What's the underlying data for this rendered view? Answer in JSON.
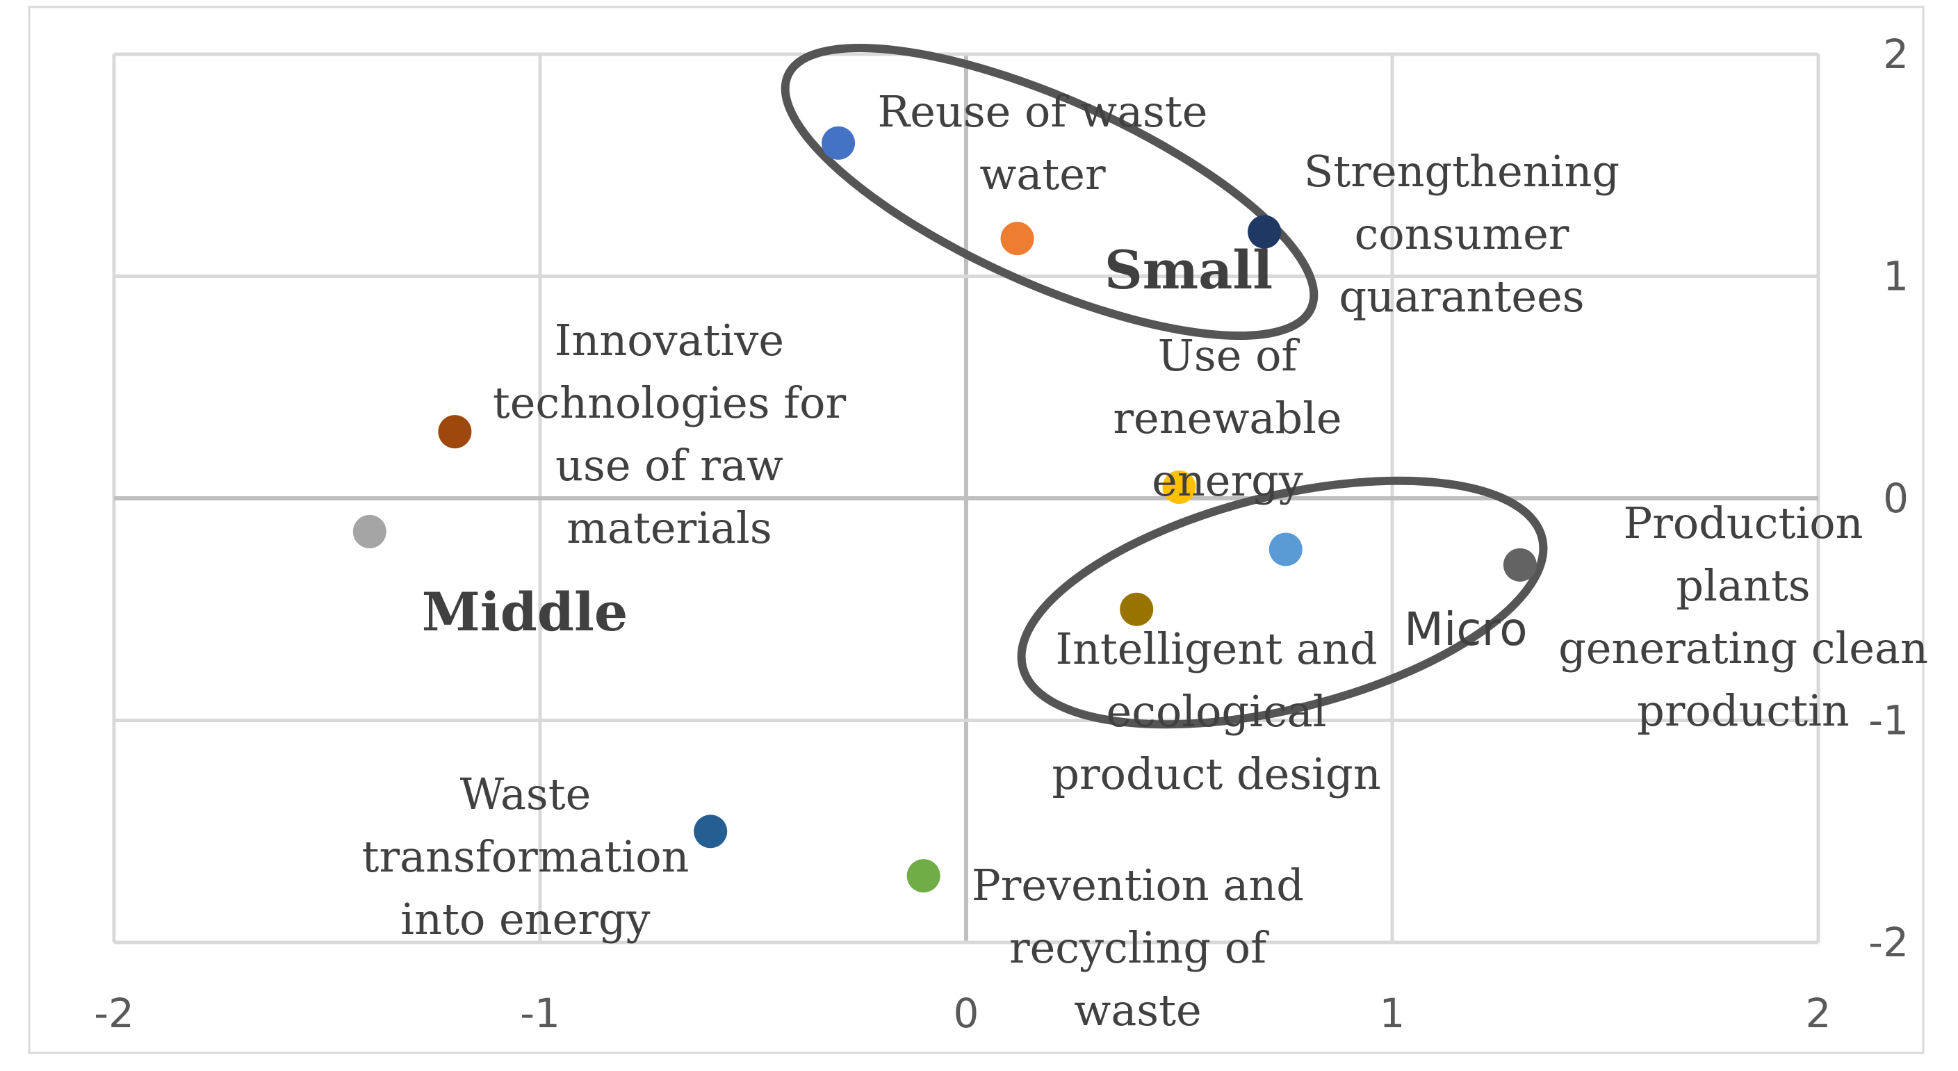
{
  "chart_data": {
    "type": "scatter",
    "title": "",
    "xlabel": "",
    "ylabel": "",
    "xlim": [
      -2,
      2
    ],
    "ylim": [
      -2,
      2
    ],
    "x_ticks": [
      "-2",
      "-1",
      "0",
      "1",
      "2"
    ],
    "y_ticks": [
      "2",
      "1",
      "0",
      "-1",
      "-2"
    ],
    "grid": true,
    "legend": "none",
    "points": [
      {
        "label": "Reuse of waste water",
        "x": -0.3,
        "y": 1.6,
        "color": "#4472c4"
      },
      {
        "label": "",
        "x": 0.12,
        "y": 1.17,
        "color": "#ed7d31"
      },
      {
        "label": "Strengthening consumer quarantees",
        "x": 0.7,
        "y": 1.2,
        "color": "#203864"
      },
      {
        "label": "Innovative technologies for use of raw materials",
        "x": -1.2,
        "y": 0.3,
        "color": "#9e480e"
      },
      {
        "label": "",
        "x": -1.4,
        "y": -0.15,
        "color": "#a5a5a5"
      },
      {
        "label": "Use of renewable energy",
        "x": 0.5,
        "y": 0.05,
        "color": "#ffc000"
      },
      {
        "label": "",
        "x": 0.75,
        "y": -0.23,
        "color": "#5b9bd5"
      },
      {
        "label": "Production plants generating clean productin",
        "x": 1.3,
        "y": -0.3,
        "color": "#636363"
      },
      {
        "label": "Intelligent and ecological product design",
        "x": 0.4,
        "y": -0.5,
        "color": "#997300"
      },
      {
        "label": "Waste transformation into energy",
        "x": -0.6,
        "y": -1.5,
        "color": "#255e91"
      },
      {
        "label": "Prevention and recycling of waste",
        "x": -0.1,
        "y": -1.7,
        "color": "#70ad47"
      }
    ],
    "groups": [
      {
        "label": "Small",
        "style": "bold-serif"
      },
      {
        "label": "Middle",
        "style": "bold-serif"
      },
      {
        "label": "Micro",
        "style": "sans"
      }
    ]
  }
}
